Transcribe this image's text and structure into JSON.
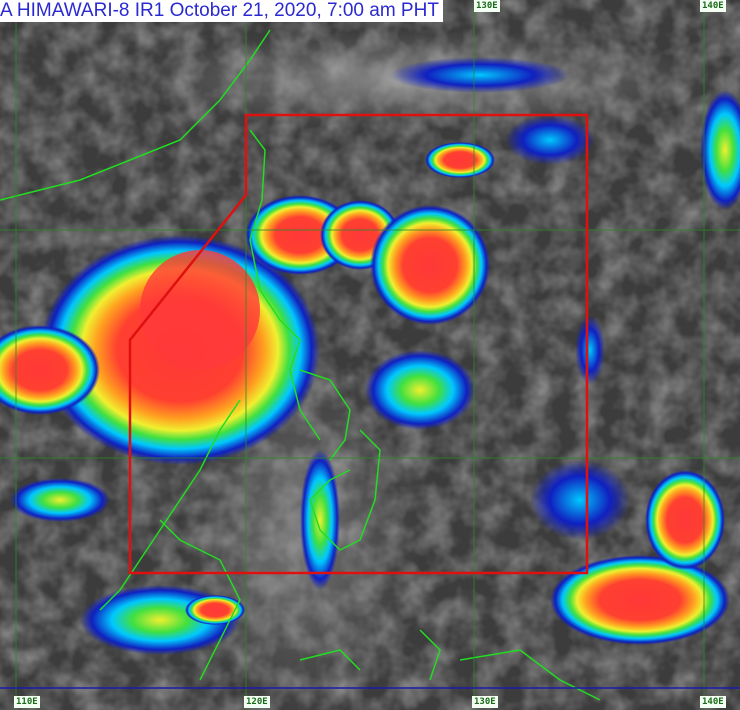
{
  "title": "A HIMAWARI-8 IR1 October 21, 2020, 7:00 am PHT",
  "longitude_labels_top": [
    "130E",
    "140E"
  ],
  "longitude_labels_bottom": [
    "110E",
    "120E",
    "130E",
    "140E"
  ],
  "colors": {
    "background": "#3a3a3a",
    "coastline": "#22dd22",
    "par_boundary": "#e01010",
    "title_text": "#2a2ad0",
    "cloud_scale": [
      "#1010c0",
      "#00c8ff",
      "#30e040",
      "#ffff30",
      "#ff9020",
      "#ff3030"
    ]
  }
}
